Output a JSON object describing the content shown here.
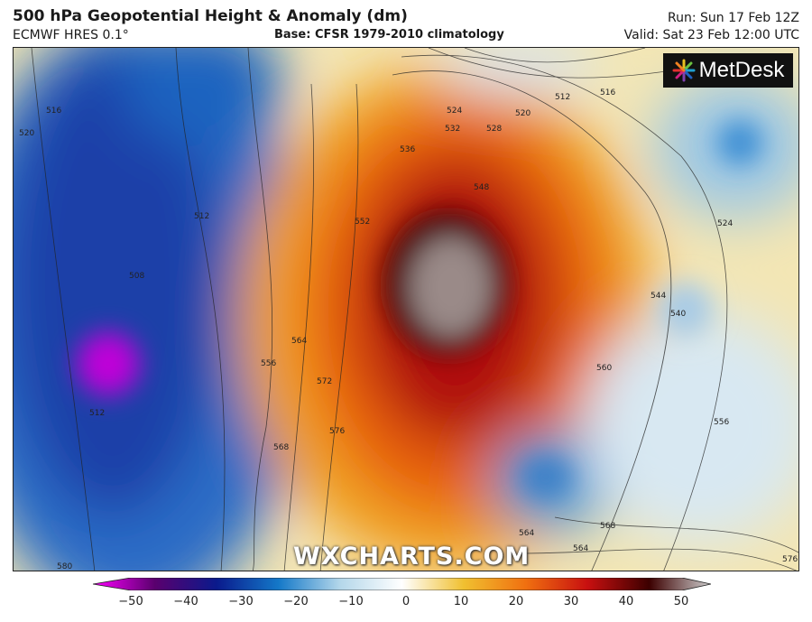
{
  "header": {
    "title": "500 hPa Geopotential Height & Anomaly (dm)",
    "model": "ECMWF HRES 0.1°",
    "base": "Base: CFSR 1979-2010 climatology",
    "run": "Run: Sun 17 Feb 12Z",
    "valid": "Valid: Sat 23 Feb 12:00 UTC"
  },
  "map": {
    "logo": "MetDesk",
    "watermark": "WXCHARTS.COM",
    "contour_labels": [
      "516",
      "520",
      "512",
      "516",
      "524",
      "520",
      "532",
      "528",
      "536",
      "548",
      "552",
      "512",
      "508",
      "556",
      "564",
      "572",
      "576",
      "568",
      "560",
      "544",
      "540",
      "524",
      "556",
      "564",
      "564",
      "568",
      "576",
      "580",
      "512"
    ]
  },
  "colorbar": {
    "ticks": [
      "−50",
      "−40",
      "−30",
      "−20",
      "−10",
      "0",
      "10",
      "20",
      "30",
      "40",
      "50"
    ],
    "range": [
      -50,
      50
    ],
    "colors": [
      "#ff00ff",
      "#5a006e",
      "#0a1a8c",
      "#1478c8",
      "#b4d7ea",
      "#ffffff",
      "#f0c030",
      "#f07010",
      "#c81010",
      "#3c0000",
      "#d0d0d0"
    ]
  }
}
